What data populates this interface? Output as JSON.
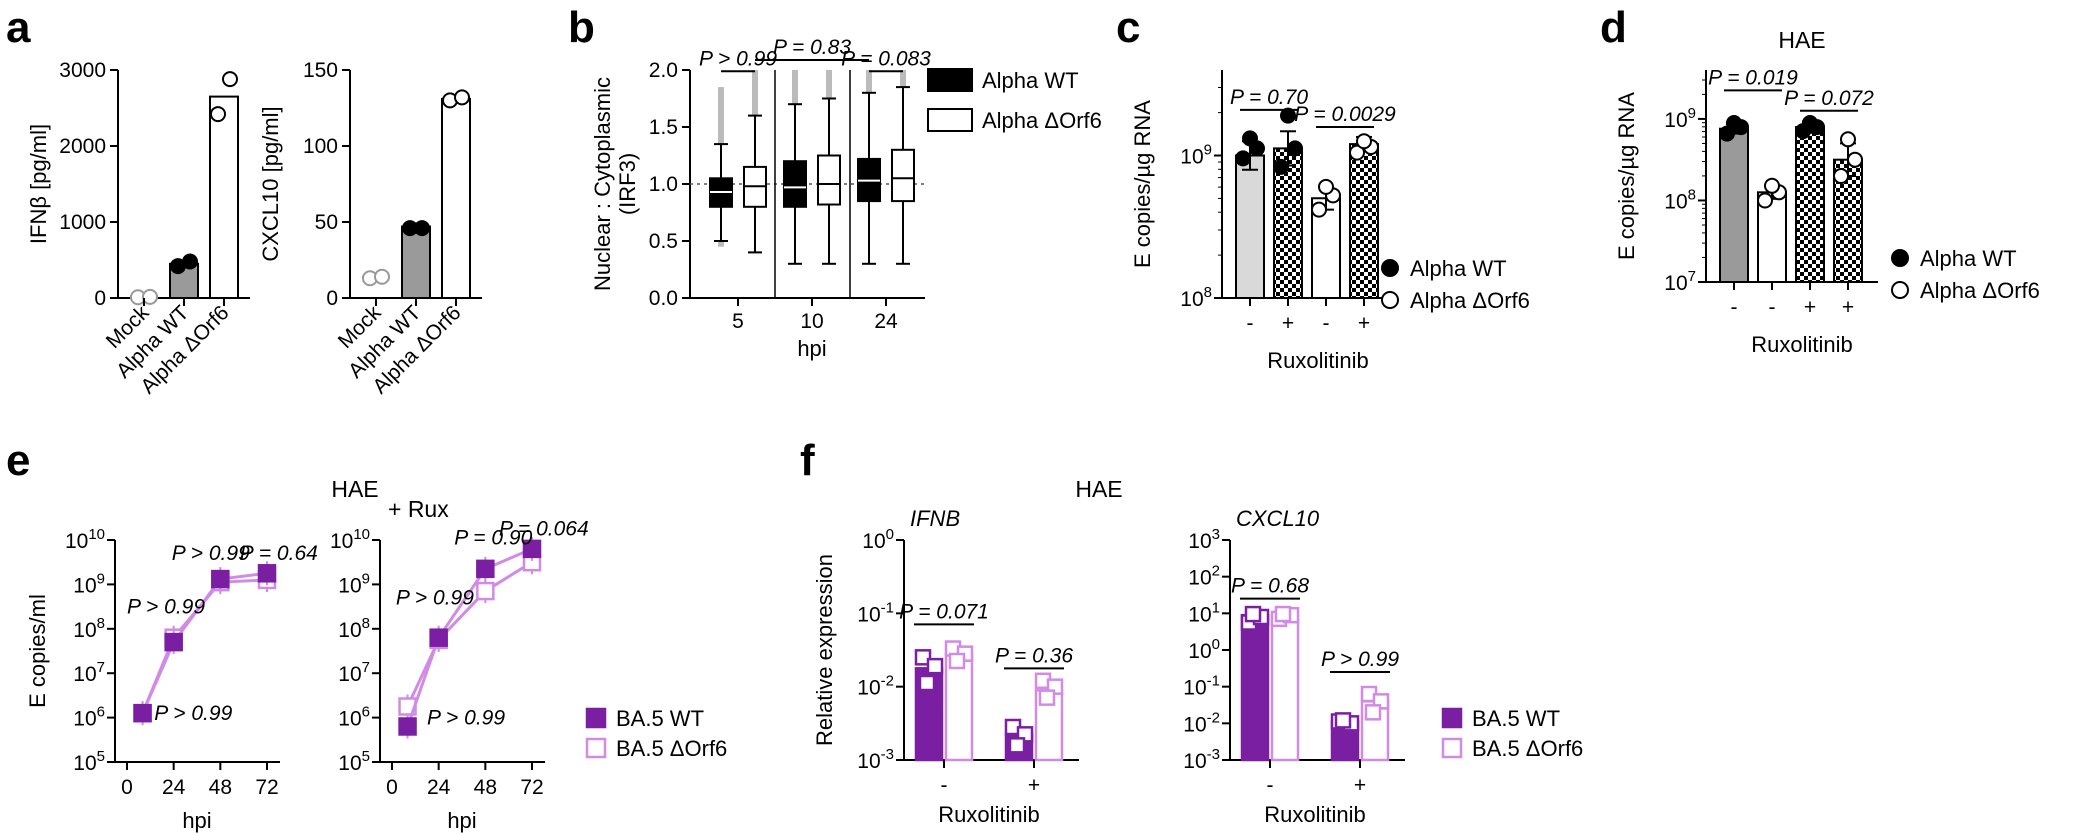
{
  "panels": {
    "a": "a",
    "b": "b",
    "c": "c",
    "d": "d",
    "e": "e",
    "f": "f"
  },
  "chart_data": [
    {
      "id": "a_ifnb",
      "type": "bar",
      "panel": "a",
      "ylabel": "IFNβ [pg/ml]",
      "ylim": [
        0,
        3000
      ],
      "yticks": [
        {
          "v": 0,
          "label": "0"
        },
        {
          "v": 1000,
          "label": "1000"
        },
        {
          "v": 2000,
          "label": "2000"
        },
        {
          "v": 3000,
          "label": "3000"
        }
      ],
      "categories": [
        "Mock",
        "Alpha WT",
        "Alpha ΔOrf6"
      ],
      "fills": [
        "#ffffff",
        "#9a9a9a",
        "#ffffff"
      ],
      "values": [
        20,
        450,
        2650
      ],
      "points": [
        [
          10,
          15
        ],
        [
          420,
          480
        ],
        [
          2420,
          2880
        ]
      ]
    },
    {
      "id": "a_cxcl10",
      "type": "bar",
      "panel": "a",
      "ylabel": "CXCL10 [pg/ml]",
      "ylim": [
        0,
        150
      ],
      "yticks": [
        {
          "v": 0,
          "label": "0"
        },
        {
          "v": 50,
          "label": "50"
        },
        {
          "v": 100,
          "label": "100"
        },
        {
          "v": 150,
          "label": "150"
        }
      ],
      "categories": [
        "Mock",
        "Alpha WT",
        "Alpha ΔOrf6"
      ],
      "fills": [
        "#ffffff",
        "#9a9a9a",
        "#ffffff"
      ],
      "values": [
        14,
        47,
        131
      ],
      "points": [
        [
          13,
          14
        ],
        [
          46,
          46
        ],
        [
          130,
          132
        ]
      ]
    },
    {
      "id": "b",
      "type": "box",
      "panel": "b",
      "ylabel": "Nuclear : Cytoplasmic (IRF3)",
      "xlabel": "hpi",
      "ylim": [
        0,
        2.0
      ],
      "yticks": [
        {
          "v": 0,
          "label": "0.0"
        },
        {
          "v": 0.5,
          "label": "0.5"
        },
        {
          "v": 1.0,
          "label": "1.0"
        },
        {
          "v": 1.5,
          "label": "1.5"
        },
        {
          "v": 2.0,
          "label": "2.0"
        }
      ],
      "categories": [
        "5",
        "10",
        "24"
      ],
      "series": [
        {
          "name": "Alpha WT",
          "fill": "#000000",
          "boxes": [
            {
              "q1": 0.8,
              "median": 0.93,
              "q3": 1.05,
              "lo": 0.5,
              "hi": 1.35
            },
            {
              "q1": 0.8,
              "median": 0.97,
              "q3": 1.2,
              "lo": 0.3,
              "hi": 1.7
            },
            {
              "q1": 0.85,
              "median": 1.03,
              "q3": 1.22,
              "lo": 0.3,
              "hi": 1.8
            }
          ]
        },
        {
          "name": "Alpha ΔOrf6",
          "fill": "#ffffff",
          "boxes": [
            {
              "q1": 0.8,
              "median": 0.98,
              "q3": 1.15,
              "lo": 0.4,
              "hi": 1.6
            },
            {
              "q1": 0.82,
              "median": 1.0,
              "q3": 1.25,
              "lo": 0.3,
              "hi": 1.75
            },
            {
              "q1": 0.85,
              "median": 1.05,
              "q3": 1.3,
              "lo": 0.3,
              "hi": 1.85
            }
          ]
        }
      ],
      "pvalues": [
        {
          "text": "P > 0.99",
          "x1": 0,
          "x2": 1,
          "y": 1.98
        },
        {
          "text": "P = 0.83",
          "x1": 1,
          "x2": 4,
          "y": 2.18
        },
        {
          "text": "P = 0.083",
          "x1": 4,
          "x2": 5,
          "y": 1.98
        }
      ]
    },
    {
      "id": "c",
      "type": "bar",
      "panel": "c",
      "scale": "log",
      "ylabel": "E copies/µg RNA",
      "xlabel": "Ruxolitinib",
      "ylim": [
        8,
        9.6
      ],
      "yticks": [
        {
          "v": 8,
          "base": "10",
          "exp": "8"
        },
        {
          "v": 9,
          "base": "10",
          "exp": "9"
        }
      ],
      "categories": [
        "-",
        "+",
        "-",
        "+"
      ],
      "fills": [
        "#d9d9d9",
        "checker",
        "#ffffff",
        "checker"
      ],
      "values": [
        9.0,
        9.05,
        8.7,
        9.08
      ],
      "errors": [
        0.1,
        0.12,
        0.08,
        0.05
      ],
      "markers": [
        "filled",
        "filled",
        "open",
        "open"
      ],
      "points": [
        [
          8.98,
          9.05,
          9.12
        ],
        [
          8.92,
          9.05,
          9.28
        ],
        [
          8.62,
          8.72,
          8.78
        ],
        [
          9.02,
          9.06,
          9.1
        ]
      ],
      "legend": [
        {
          "name": "Alpha WT",
          "marker": "filled"
        },
        {
          "name": "Alpha ΔOrf6",
          "marker": "open"
        }
      ],
      "pvalues": [
        {
          "text": "P = 0.70",
          "x1": 0,
          "x2": 1,
          "y": 9.32
        },
        {
          "text": "P = 0.0029",
          "x1": 2,
          "x2": 3,
          "y": 9.2
        }
      ]
    },
    {
      "id": "d",
      "type": "bar",
      "panel": "d",
      "scale": "log",
      "title": "HAE",
      "ylabel": "E copies/µg RNA",
      "xlabel": "Ruxolitinib",
      "ylim": [
        7,
        9.6
      ],
      "yticks": [
        {
          "v": 7,
          "base": "10",
          "exp": "7"
        },
        {
          "v": 8,
          "base": "10",
          "exp": "8"
        },
        {
          "v": 9,
          "base": "10",
          "exp": "9"
        }
      ],
      "categories": [
        "-",
        "-",
        "+",
        "+"
      ],
      "fills": [
        "#9a9a9a",
        "#ffffff",
        "checker",
        "checker"
      ],
      "values": [
        8.88,
        8.1,
        8.9,
        8.5
      ],
      "errors": [
        0.06,
        0.08,
        0.07,
        0.2
      ],
      "markers": [
        "filled",
        "open",
        "filled",
        "open"
      ],
      "points": [
        [
          8.82,
          8.9,
          8.95
        ],
        [
          8.0,
          8.1,
          8.18
        ],
        [
          8.85,
          8.9,
          8.95
        ],
        [
          8.3,
          8.5,
          8.75
        ]
      ],
      "legend": [
        {
          "name": "Alpha WT",
          "marker": "filled"
        },
        {
          "name": "Alpha ΔOrf6",
          "marker": "open"
        }
      ],
      "pvalues": [
        {
          "text": "P = 0.019",
          "x1": 0,
          "x2": 1,
          "y": 9.35
        },
        {
          "text": "P = 0.072",
          "x1": 2,
          "x2": 3,
          "y": 9.1
        }
      ]
    },
    {
      "id": "e_left",
      "type": "line",
      "panel": "e",
      "scale": "log",
      "title": "HAE",
      "ylabel": "E copies/ml",
      "xlabel": "hpi",
      "xlim": [
        0,
        72
      ],
      "ylim": [
        5,
        10
      ],
      "xticks": [
        0,
        24,
        48,
        72
      ],
      "yticks": [
        {
          "v": 5,
          "base": "10",
          "exp": "5"
        },
        {
          "v": 6,
          "base": "10",
          "exp": "6"
        },
        {
          "v": 7,
          "base": "10",
          "exp": "7"
        },
        {
          "v": 8,
          "base": "10",
          "exp": "8"
        },
        {
          "v": 9,
          "base": "10",
          "exp": "9"
        },
        {
          "v": 10,
          "base": "10",
          "exp": "10"
        }
      ],
      "series": [
        {
          "name": "BA.5 WT",
          "x": [
            8,
            24,
            48,
            72
          ],
          "y": [
            6.1,
            7.7,
            9.12,
            9.25
          ]
        },
        {
          "name": "BA.5 ΔOrf6",
          "x": [
            8,
            24,
            48,
            72
          ],
          "y": [
            6.1,
            7.8,
            9.05,
            9.1
          ]
        }
      ],
      "pvalues": [
        {
          "text": "P > 0.99",
          "x": 14,
          "y": 5.95
        },
        {
          "text": "P > 0.99",
          "x": 0,
          "y": 8.35
        },
        {
          "text": "P > 0.99",
          "x": 23,
          "y": 9.55
        },
        {
          "text": "P = 0.64",
          "x": 58,
          "y": 9.55
        }
      ]
    },
    {
      "id": "e_right",
      "type": "line",
      "panel": "e",
      "scale": "log",
      "title": "+ Rux",
      "xlabel": "hpi",
      "xlim": [
        0,
        72
      ],
      "ylim": [
        5,
        10
      ],
      "xticks": [
        0,
        24,
        48,
        72
      ],
      "yticks": [
        {
          "v": 5,
          "base": "10",
          "exp": "5"
        },
        {
          "v": 6,
          "base": "10",
          "exp": "6"
        },
        {
          "v": 7,
          "base": "10",
          "exp": "7"
        },
        {
          "v": 8,
          "base": "10",
          "exp": "8"
        },
        {
          "v": 9,
          "base": "10",
          "exp": "9"
        },
        {
          "v": 10,
          "base": "10",
          "exp": "10"
        }
      ],
      "series": [
        {
          "name": "BA.5 WT",
          "x": [
            8,
            24,
            48,
            72
          ],
          "y": [
            5.8,
            7.8,
            9.35,
            9.8
          ]
        },
        {
          "name": "BA.5 ΔOrf6",
          "x": [
            8,
            24,
            48,
            72
          ],
          "y": [
            6.25,
            7.75,
            8.85,
            9.5
          ]
        }
      ],
      "pvalues": [
        {
          "text": "P > 0.99",
          "x": 18,
          "y": 5.85
        },
        {
          "text": "P > 0.99",
          "x": 2,
          "y": 8.55
        },
        {
          "text": "P = 0.90",
          "x": 32,
          "y": 9.9
        },
        {
          "text": "P = 0.064",
          "x": 55,
          "y": 10.1
        }
      ],
      "legend": [
        {
          "name": "BA.5 WT",
          "marker": "filled"
        },
        {
          "name": "BA.5 ΔOrf6",
          "marker": "open"
        }
      ]
    },
    {
      "id": "f_ifnb",
      "type": "bar",
      "panel": "f",
      "scale": "log",
      "title": "HAE",
      "subtitle": "IFNB",
      "ylabel": "Relative expression",
      "xlabel": "Ruxolitinib",
      "ylim": [
        -3,
        0
      ],
      "yticks": [
        {
          "v": -3,
          "base": "10",
          "exp": "-3"
        },
        {
          "v": -2,
          "base": "10",
          "exp": "-2"
        },
        {
          "v": -1,
          "base": "10",
          "exp": "-1"
        },
        {
          "v": 0,
          "base": "10",
          "exp": "0"
        }
      ],
      "categories": [
        "-",
        "+"
      ],
      "series": [
        {
          "name": "BA.5 WT",
          "values": [
            -1.75,
            -2.65
          ],
          "points": [
            [
              -1.6,
              -1.72,
              -1.95
            ],
            [
              -2.55,
              -2.65,
              -2.8
            ]
          ]
        },
        {
          "name": "BA.5 ΔOrf6",
          "values": [
            -1.55,
            -2.05
          ],
          "points": [
            [
              -1.48,
              -1.55,
              -1.65
            ],
            [
              -1.92,
              -2.0,
              -2.15
            ]
          ]
        }
      ],
      "pvalues": [
        {
          "text": "P = 0.071",
          "x": 0,
          "y": -1.15
        },
        {
          "text": "P = 0.36",
          "x": 1,
          "y": -1.75
        }
      ]
    },
    {
      "id": "f_cxcl10",
      "type": "bar",
      "panel": "f",
      "scale": "log",
      "subtitle": "CXCL10",
      "xlabel": "Ruxolitinib",
      "ylim": [
        -3,
        3
      ],
      "yticks": [
        {
          "v": -3,
          "base": "10",
          "exp": "-3"
        },
        {
          "v": -2,
          "base": "10",
          "exp": "-2"
        },
        {
          "v": -1,
          "base": "10",
          "exp": "-1"
        },
        {
          "v": 0,
          "base": "10",
          "exp": "0"
        },
        {
          "v": 1,
          "base": "10",
          "exp": "1"
        },
        {
          "v": 2,
          "base": "10",
          "exp": "2"
        },
        {
          "v": 3,
          "base": "10",
          "exp": "3"
        }
      ],
      "categories": [
        "-",
        "+"
      ],
      "series": [
        {
          "name": "BA.5 WT",
          "values": [
            0.95,
            -1.95
          ],
          "points": [
            [
              0.75,
              0.9,
              0.98
            ],
            [
              -1.95,
              -2.0,
              -1.92
            ]
          ]
        },
        {
          "name": "BA.5 ΔOrf6",
          "values": [
            0.95,
            -1.4
          ],
          "points": [
            [
              0.85,
              0.95,
              0.98
            ],
            [
              -1.2,
              -1.4,
              -1.7
            ]
          ]
        }
      ],
      "pvalues": [
        {
          "text": "P = 0.68",
          "x": 0,
          "y": 1.4
        },
        {
          "text": "P > 0.99",
          "x": 1,
          "y": -0.6
        }
      ],
      "legend": [
        {
          "name": "BA.5 WT",
          "marker": "filled"
        },
        {
          "name": "BA.5 ΔOrf6",
          "marker": "open"
        }
      ]
    }
  ],
  "colors": {
    "purple": "#7a1fa2",
    "lilac": "#d18be6"
  }
}
